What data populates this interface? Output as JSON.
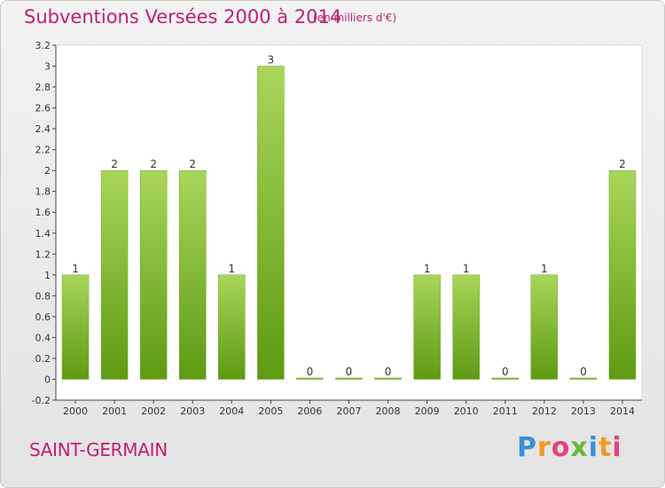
{
  "header": {
    "title": "Subventions Versées 2000 à 2014",
    "unit": "(en milliers d'€)"
  },
  "footer": {
    "commune": "SAINT-GERMAIN",
    "logo_letters": [
      "P",
      "r",
      "o",
      "x",
      "i",
      "t",
      "i"
    ],
    "logo_colors": [
      "#3a8fd6",
      "#f39a1f",
      "#e0457b",
      "#6bb83a",
      "#3a8fd6",
      "#f39a1f",
      "#e0457b"
    ]
  },
  "colors": {
    "bar_light": "#a8d65a",
    "bar_dark": "#5e9a12",
    "accent": "#c0206f"
  },
  "chart_data": {
    "type": "bar",
    "categories": [
      "2000",
      "2001",
      "2002",
      "2003",
      "2004",
      "2005",
      "2006",
      "2007",
      "2008",
      "2009",
      "2010",
      "2011",
      "2012",
      "2013",
      "2014"
    ],
    "values": [
      1,
      2,
      2,
      2,
      1,
      3,
      0,
      0,
      0,
      1,
      1,
      0,
      1,
      0,
      2
    ],
    "data_labels": [
      "1",
      "2",
      "2",
      "2",
      "1",
      "3",
      "0",
      "0",
      "0",
      "1",
      "1",
      "0",
      "1",
      "0",
      "2"
    ],
    "yticks": [
      -0.2,
      0,
      0.2,
      0.4,
      0.6,
      0.8,
      1,
      1.2,
      1.4,
      1.6,
      1.8,
      2,
      2.2,
      2.4,
      2.6,
      2.8,
      3,
      3.2
    ],
    "ytick_labels": [
      "-0.2",
      "0",
      "0.2",
      "0.4",
      "0.6",
      "0.8",
      "1",
      "1.2",
      "1.4",
      "1.6",
      "1.8",
      "2",
      "2.2",
      "2.4",
      "2.6",
      "2.8",
      "3",
      "3.2"
    ],
    "ylim": [
      -0.2,
      3.2
    ],
    "grid": false,
    "legend": "none"
  }
}
